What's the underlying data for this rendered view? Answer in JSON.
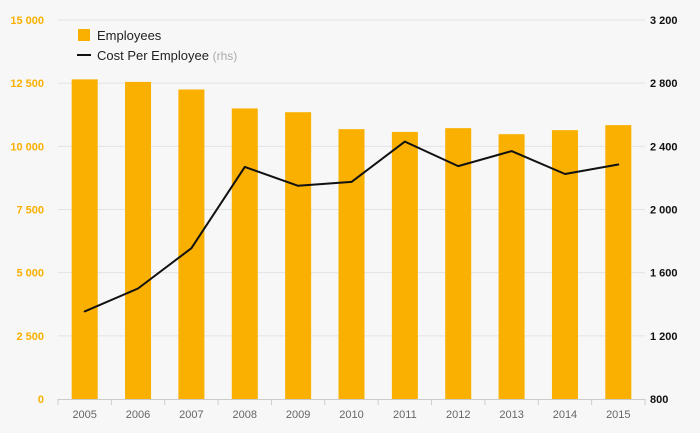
{
  "chart_data": {
    "type": "bar+line",
    "categories": [
      "2005",
      "2006",
      "2007",
      "2008",
      "2009",
      "2010",
      "2011",
      "2012",
      "2013",
      "2014",
      "2015"
    ],
    "series": [
      {
        "name": "Employees",
        "type": "bar",
        "axis": "left",
        "color": "#f9b000",
        "values": [
          12650,
          12550,
          12250,
          11500,
          11350,
          10680,
          10570,
          10720,
          10480,
          10640,
          10840
        ]
      },
      {
        "name": "Cost Per Employee",
        "type": "line",
        "axis": "right",
        "color": "#111111",
        "values": [
          1355,
          1500,
          1755,
          2270,
          2150,
          2175,
          2430,
          2275,
          2370,
          2225,
          2285
        ]
      }
    ],
    "legend": {
      "position": "top-left",
      "entries": [
        {
          "label": "Employees",
          "suffix": ""
        },
        {
          "label": "Cost Per Employee",
          "suffix": "(rhs)"
        }
      ]
    },
    "y_left": {
      "ylim": [
        0,
        15000
      ],
      "ticks": [
        0,
        2500,
        5000,
        7500,
        10000,
        12500,
        15000
      ],
      "tick_labels": [
        "0",
        "2 500",
        "5 000",
        "7 500",
        "10 000",
        "12 500",
        "15 000"
      ],
      "color": "#f9b000"
    },
    "y_right": {
      "ylim": [
        800,
        3200
      ],
      "ticks": [
        800,
        1200,
        1600,
        2000,
        2400,
        2800,
        3200
      ],
      "tick_labels": [
        "800",
        "1 200",
        "1 600",
        "2 000",
        "2 400",
        "2 800",
        "3 200"
      ],
      "color": "#111111"
    },
    "grid": true,
    "title": "",
    "xlabel": "",
    "ylabel": ""
  },
  "colors": {
    "background": "#f7f7f7",
    "grid": "#e3e3e3",
    "axis_line": "#cccccc",
    "x_tick_text": "#666666",
    "legend_suffix": "#aaaaaa",
    "legend_text": "#222222"
  }
}
